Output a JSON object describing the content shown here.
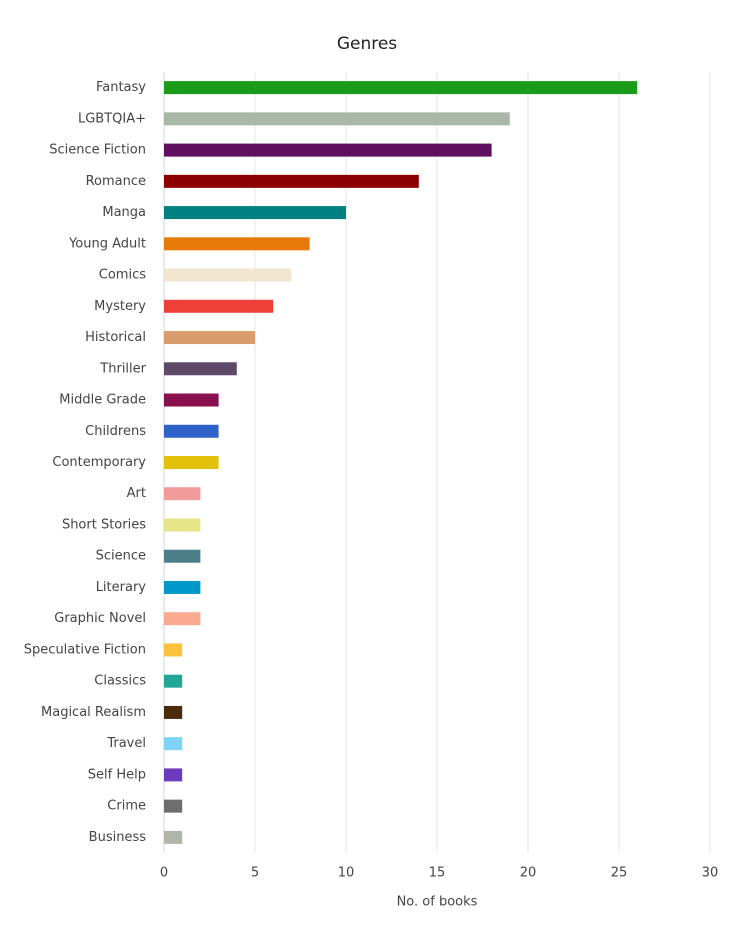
{
  "chart_data": {
    "type": "bar",
    "orientation": "horizontal",
    "title": "Genres",
    "x_label": "No. of books",
    "categories": [
      "Fantasy",
      "LGBTQIA+",
      "Science Fiction",
      "Romance",
      "Manga",
      "Young Adult",
      "Comics",
      "Mystery",
      "Historical",
      "Thriller",
      "Middle Grade",
      "Childrens",
      "Contemporary",
      "Art",
      "Short Stories",
      "Science",
      "Literary",
      "Graphic Novel",
      "Speculative Fiction",
      "Classics",
      "Magical Realism",
      "Travel",
      "Self Help",
      "Crime",
      "Business"
    ],
    "values": [
      26,
      19,
      18,
      14,
      10,
      8,
      7,
      6,
      5,
      4,
      3,
      3,
      3,
      2,
      2,
      2,
      2,
      2,
      1,
      1,
      1,
      1,
      1,
      1,
      1
    ],
    "colors": [
      "#1a9c1a",
      "#a9b7a6",
      "#5f0f5f",
      "#8b0000",
      "#008080",
      "#e87a0a",
      "#f3e6d0",
      "#ef3f38",
      "#d99c6d",
      "#5e4a68",
      "#8a0f4e",
      "#2f62c8",
      "#e3c10b",
      "#f19b9b",
      "#e6e689",
      "#4a7f89",
      "#0098c7",
      "#fcaa8f",
      "#fdc13b",
      "#22a796",
      "#4a2b0c",
      "#7fd3f7",
      "#6a3cbc",
      "#6e6e6e",
      "#b0b5aa"
    ],
    "xlim": [
      0,
      30
    ],
    "xticks": [
      0,
      5,
      10,
      15,
      20,
      25,
      30
    ],
    "grid": true
  }
}
